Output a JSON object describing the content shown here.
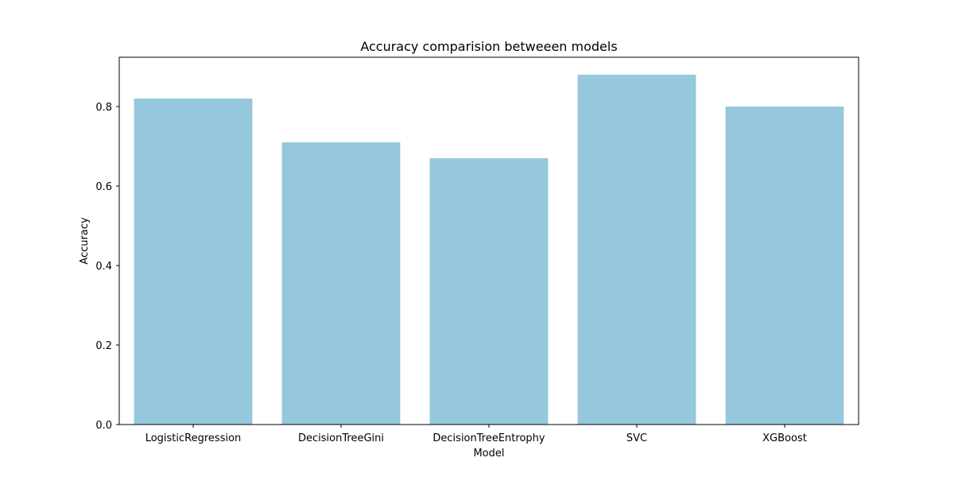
{
  "chart_data": {
    "type": "bar",
    "title": "Accuracy comparision betweeen models",
    "xlabel": "Model",
    "ylabel": "Accuracy",
    "categories": [
      "LogisticRegression",
      "DecisionTreeGini",
      "DecisionTreeEntrophy",
      "SVC",
      "XGBoost"
    ],
    "values": [
      0.82,
      0.71,
      0.67,
      0.88,
      0.8
    ],
    "ylim": [
      0,
      0.924
    ],
    "yticks": [
      0.0,
      0.2,
      0.4,
      0.6,
      0.8
    ],
    "ytick_labels": [
      "0.0",
      "0.2",
      "0.4",
      "0.6",
      "0.8"
    ],
    "grid": false,
    "bar_color": "#95c8dd"
  }
}
